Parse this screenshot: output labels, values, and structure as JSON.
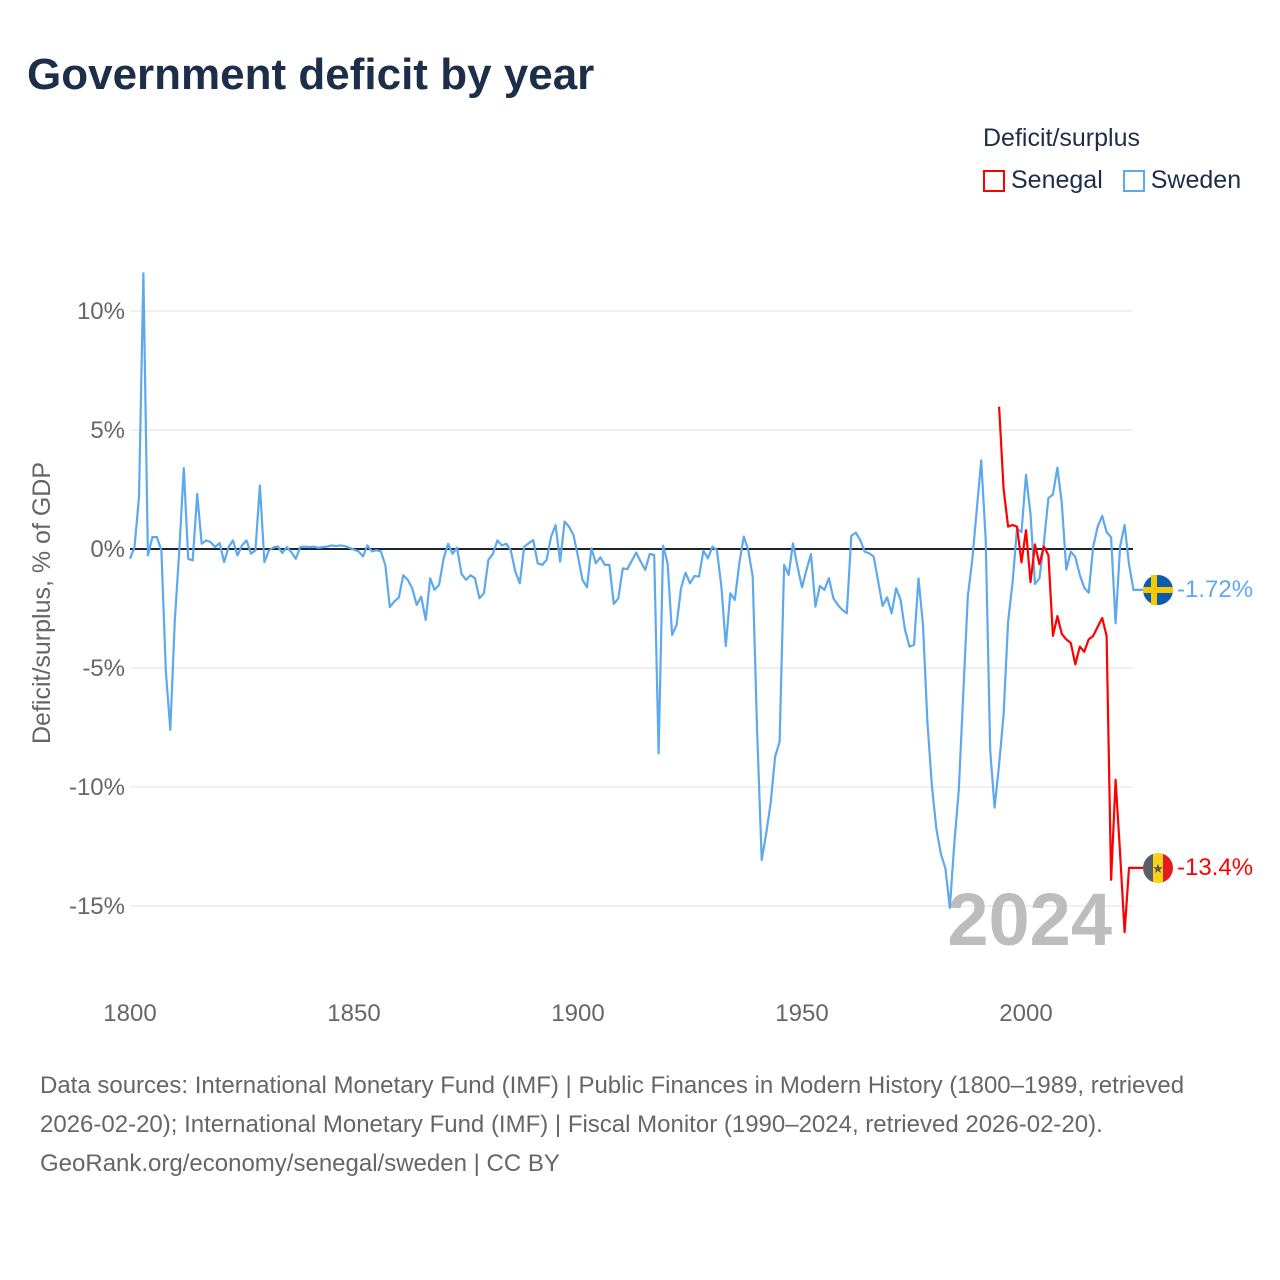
{
  "title": "Government deficit by year",
  "legend": {
    "title": "Deficit/surplus",
    "items": [
      {
        "name": "Senegal",
        "color": "#ff0000"
      },
      {
        "name": "Sweden",
        "color": "#5ea8ee"
      }
    ]
  },
  "footer": {
    "sources": "Data sources: International Monetary Fund (IMF) | Public Finances in Modern History (1800–1989, retrieved 2026-02-20); International Monetary Fund (IMF) | Fiscal Monitor (1990–2024, retrieved 2026-02-20).",
    "credit": "GeoRank.org/economy/senegal/sweden | CC BY"
  },
  "chart_data": {
    "type": "line",
    "title": "Government deficit by year",
    "xlabel": "",
    "ylabel": "Deficit/surplus, % of GDP",
    "xlim": [
      1800,
      2024
    ],
    "ylim": [
      -17,
      12
    ],
    "xticks": [
      1800,
      1850,
      1900,
      1950,
      2000
    ],
    "xtick_labels": [
      "1800",
      "1850",
      "1900",
      "1950",
      "2000"
    ],
    "yticks": [
      10,
      5,
      0,
      -5,
      -10,
      -15
    ],
    "ytick_labels": [
      "10%",
      "5%",
      "0%",
      "-5%",
      "-10%",
      "-15%"
    ],
    "current_year_label": "2024",
    "legend_position": "top-right",
    "series": [
      {
        "name": "Sweden",
        "color": "#5ea8ee",
        "end_label": "-1.72%",
        "start_year": 1800,
        "values": [
          -0.41,
          0.08,
          2.18,
          11.58,
          -0.27,
          0.5,
          0.5,
          -0.06,
          -5.1,
          -7.6,
          -3.0,
          -0.06,
          3.4,
          -0.41,
          -0.48,
          2.32,
          0.22,
          0.36,
          0.29,
          0.08,
          0.25,
          -0.55,
          0.08,
          0.36,
          -0.27,
          0.15,
          0.36,
          -0.2,
          -0.06,
          2.67,
          -0.55,
          -0.06,
          0.06,
          0.11,
          -0.17,
          0.08,
          -0.13,
          -0.41,
          0.08,
          0.1,
          0.08,
          0.1,
          0.05,
          0.08,
          0.1,
          0.15,
          0.12,
          0.15,
          0.12,
          0.05,
          -0.03,
          -0.1,
          -0.31,
          0.15,
          -0.1,
          -0.05,
          -0.1,
          -0.69,
          -2.44,
          -2.2,
          -2.04,
          -1.1,
          -1.3,
          -1.65,
          -2.35,
          -2.0,
          -2.98,
          -1.23,
          -1.72,
          -1.5,
          -0.4,
          0.22,
          -0.2,
          0.06,
          -1.04,
          -1.3,
          -1.1,
          -1.23,
          -2.07,
          -1.86,
          -0.46,
          -0.2,
          0.36,
          0.15,
          0.22,
          -0.06,
          -0.95,
          -1.44,
          0.1,
          0.24,
          0.38,
          -0.6,
          -0.67,
          -0.46,
          0.52,
          1.0,
          -0.53,
          1.15,
          0.94,
          0.59,
          -0.32,
          -1.3,
          -1.61,
          0.03,
          -0.6,
          -0.35,
          -0.67,
          -0.67,
          -2.31,
          -2.07,
          -0.81,
          -0.85,
          -0.49,
          -0.15,
          -0.53,
          -0.88,
          -0.21,
          -0.25,
          -8.59,
          0.14,
          -0.6,
          -3.61,
          -3.19,
          -1.65,
          -0.99,
          -1.44,
          -1.13,
          -1.16,
          -0.07,
          -0.39,
          0.1,
          -0.04,
          -1.58,
          -4.08,
          -1.86,
          -2.14,
          -0.6,
          0.52,
          -0.04,
          -1.16,
          -7.75,
          -13.07,
          -11.95,
          -10.69,
          -8.73,
          -8.1,
          -0.67,
          -1.09,
          0.24,
          -0.74,
          -1.61,
          -0.88,
          -0.21,
          -2.42,
          -1.55,
          -1.72,
          -1.23,
          -2.07,
          -2.35,
          -2.56,
          -2.7,
          0.55,
          0.69,
          0.38,
          -0.11,
          -0.18,
          -0.32,
          -1.37,
          -2.39,
          -2.03,
          -2.7,
          -1.65,
          -2.14,
          -3.4,
          -4.1,
          -4.03,
          -1.24,
          -3.2,
          -7.26,
          -9.96,
          -11.77,
          -12.82,
          -13.42,
          -15.08,
          -12.37,
          -10.11,
          -6.05,
          -1.99,
          -0.49,
          1.62,
          3.72,
          0.41,
          -8.46,
          -10.87,
          -9.06,
          -6.96,
          -3.05,
          -1.39,
          0.86,
          0.71,
          3.12,
          1.47,
          -1.47,
          -1.24,
          0.26,
          2.14,
          2.29,
          3.42,
          1.92,
          -0.87,
          -0.11,
          -0.34,
          -1.09,
          -1.62,
          -1.84,
          0.11,
          0.94,
          1.39,
          0.71,
          0.49,
          -3.12,
          0.11,
          1.01,
          -0.64,
          -1.72
        ]
      },
      {
        "name": "Senegal",
        "color": "#ff0000",
        "end_label": "-13.4%",
        "start_year": 1994,
        "values": [
          5.98,
          2.52,
          0.94,
          1.01,
          0.94,
          -0.56,
          0.79,
          -1.39,
          0.19,
          -0.64,
          0.11,
          -0.26,
          -3.65,
          -2.82,
          -3.57,
          -3.8,
          -3.95,
          -4.85,
          -4.1,
          -4.32,
          -3.8,
          -3.65,
          -3.27,
          -2.9,
          -3.65,
          -13.9,
          -9.7,
          -12.8,
          -16.1,
          -13.4
        ]
      }
    ]
  }
}
